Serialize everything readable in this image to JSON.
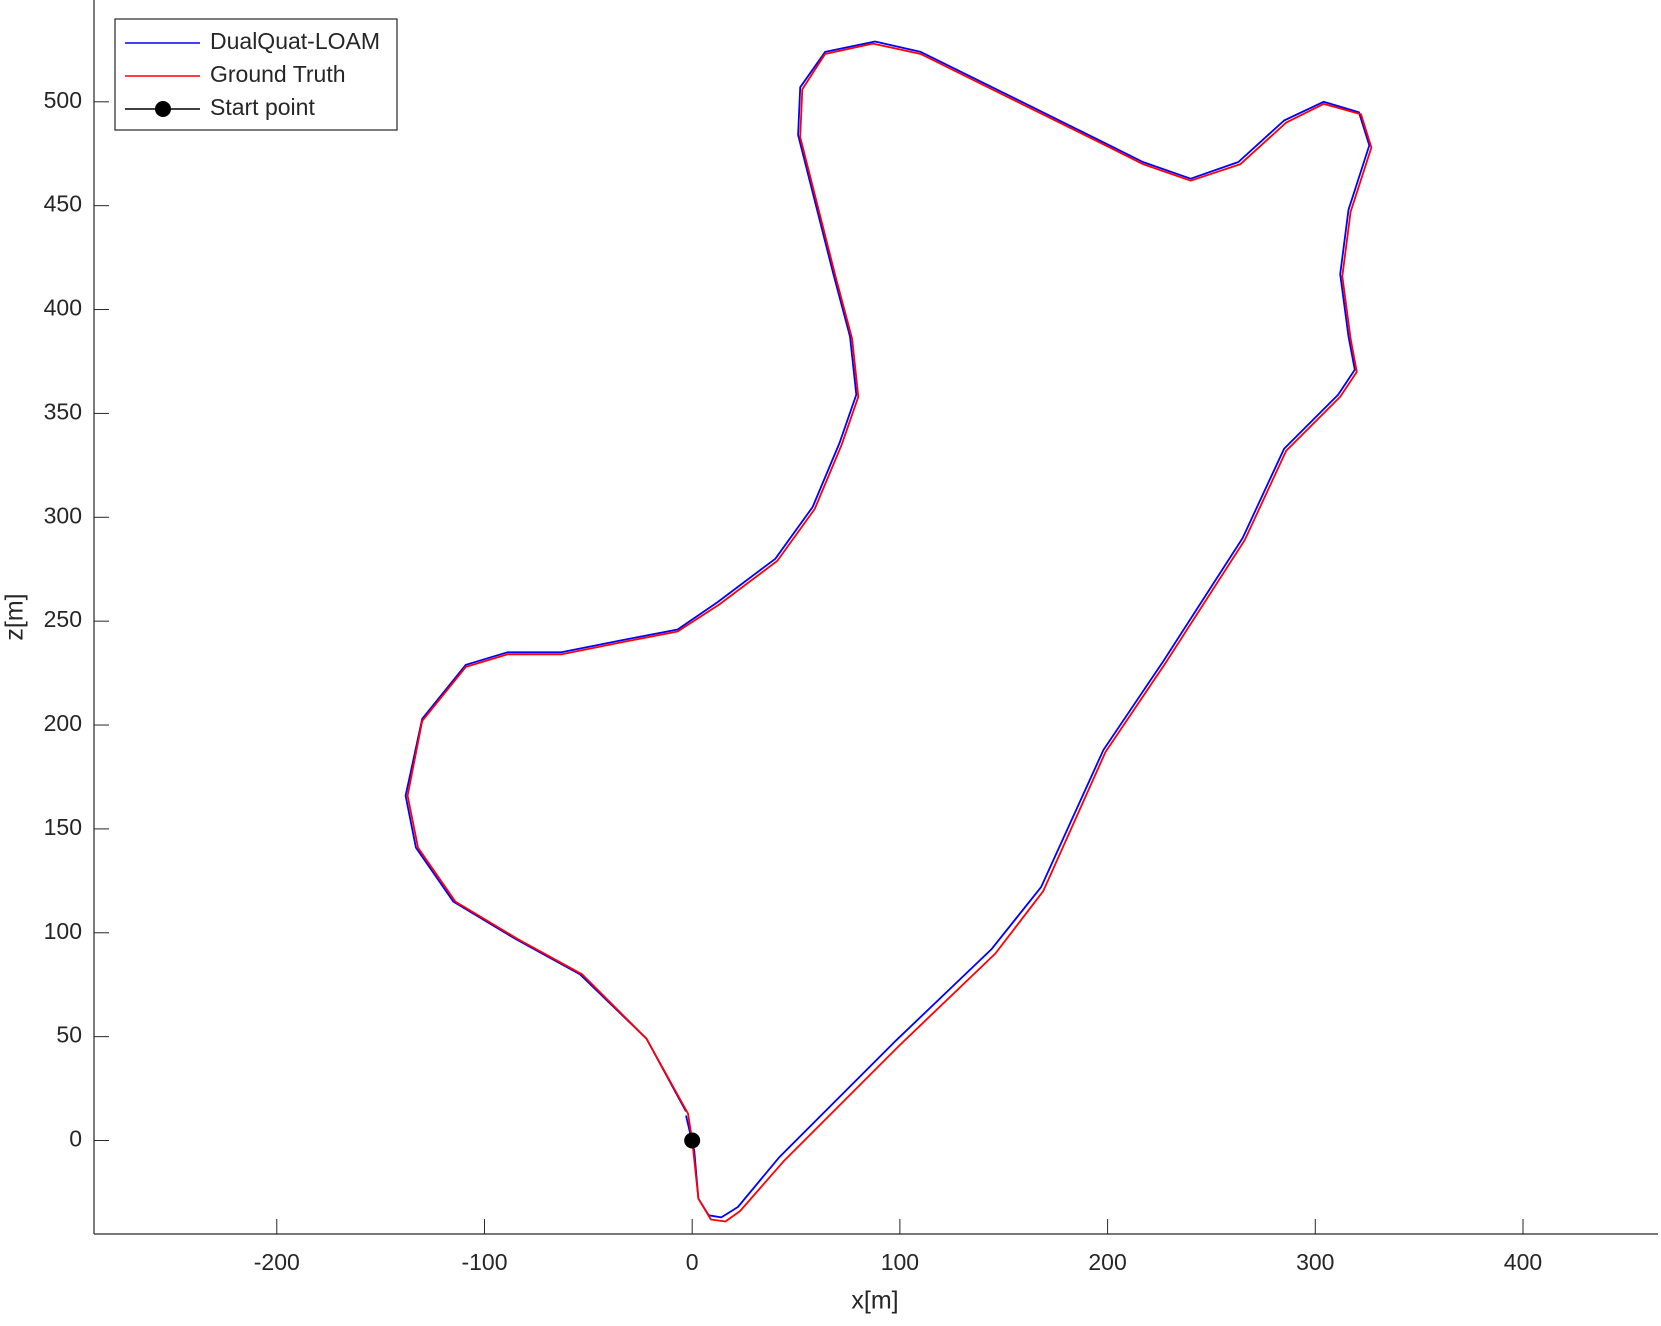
{
  "chart_data": {
    "type": "line",
    "xlabel": "x[m]",
    "ylabel": "z[m]",
    "xlim": [
      -288,
      465
    ],
    "ylim": [
      -45,
      549
    ],
    "xticks": [
      -200,
      -100,
      0,
      100,
      200,
      300,
      400
    ],
    "yticks": [
      0,
      50,
      100,
      150,
      200,
      250,
      300,
      350,
      400,
      450,
      500
    ],
    "legend": "upper-left",
    "series": [
      {
        "name": "DualQuat-LOAM",
        "color": "#0000ff",
        "x": [
          -3,
          1,
          3,
          8,
          14,
          22,
          42,
          98,
          144,
          168,
          198,
          227,
          265,
          285,
          311,
          319,
          316,
          312,
          316,
          326,
          321,
          304,
          285,
          263,
          240,
          217,
          197,
          110,
          88,
          64,
          52,
          51,
          68,
          76,
          79,
          71,
          58,
          40,
          12,
          -7,
          -33,
          -63,
          -89,
          -109,
          -130,
          -138,
          -133,
          -115,
          -85,
          -54,
          -22,
          -3
        ],
        "values": [
          12,
          -5,
          -28,
          -36,
          -37,
          -32,
          -8,
          48,
          92,
          122,
          188,
          231,
          290,
          333,
          359,
          371,
          387,
          417,
          448,
          479,
          495,
          500,
          491,
          471,
          463,
          471,
          481,
          524,
          529,
          524,
          507,
          484,
          417,
          387,
          359,
          336,
          305,
          280,
          259,
          246,
          241,
          235,
          235,
          229,
          203,
          166,
          141,
          115,
          97,
          80,
          49,
          14
        ]
      },
      {
        "name": "Ground Truth",
        "color": "#ff0000",
        "x": [
          0,
          3,
          9,
          16,
          23,
          44,
          100,
          146,
          169,
          199,
          228,
          266,
          286,
          312,
          320,
          317,
          313,
          317,
          327,
          322,
          304,
          286,
          264,
          240,
          217,
          197,
          110,
          87,
          64,
          53,
          52,
          69,
          77,
          80,
          72,
          59,
          41,
          13,
          -7,
          -33,
          -63,
          -89,
          -109,
          -130,
          -137,
          -132,
          -114,
          -84,
          -53,
          -22,
          -2,
          0
        ],
        "values": [
          0,
          -28,
          -38,
          -39,
          -34,
          -10,
          46,
          90,
          120,
          187,
          230,
          289,
          332,
          358,
          370,
          386,
          416,
          447,
          478,
          494,
          499,
          490,
          470,
          462,
          470,
          480,
          523,
          528,
          523,
          506,
          483,
          416,
          386,
          358,
          335,
          304,
          279,
          258,
          245,
          240,
          234,
          234,
          228,
          202,
          166,
          141,
          115,
          97,
          80,
          49,
          13,
          0
        ]
      },
      {
        "name": "Start point",
        "color": "#000000",
        "marker": "o",
        "x": [
          0
        ],
        "values": [
          0
        ]
      }
    ]
  }
}
